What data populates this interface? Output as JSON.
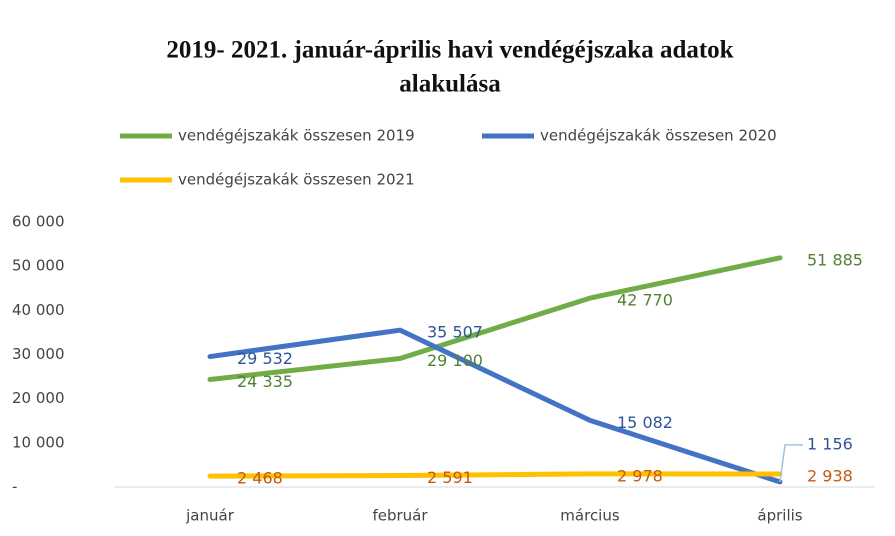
{
  "chart_data": {
    "type": "line",
    "title": [
      "2019- 2021. január-április havi vendégéjszaka adatok",
      "alakulása"
    ],
    "categories": [
      "január",
      "február",
      "március",
      "április"
    ],
    "series": [
      {
        "name": "vendégéjszakák összesen 2019",
        "color": "#70ad47",
        "label_color": "#548235",
        "values": [
          24335,
          29100,
          42770,
          51885
        ],
        "value_labels": [
          "24 335",
          "29 100",
          "42 770",
          "51 885"
        ]
      },
      {
        "name": "vendégéjszakák összesen 2020",
        "color": "#4472c4",
        "label_color": "#2f5597",
        "values": [
          29532,
          35507,
          15082,
          1156
        ],
        "value_labels": [
          "29 532",
          "35 507",
          "15 082",
          "1 156"
        ]
      },
      {
        "name": "vendégéjszakák összesen 2021",
        "color": "#ffc000",
        "label_color": "#c55a11",
        "values": [
          2468,
          2591,
          2978,
          2938
        ],
        "value_labels": [
          "2 468",
          "2 591",
          "2 978",
          "2 938"
        ]
      }
    ],
    "ylim": [
      0,
      60000
    ],
    "yticks": [
      {
        "value": 0,
        "label": "-"
      },
      {
        "value": 10000,
        "label": "10 000"
      },
      {
        "value": 20000,
        "label": "20 000"
      },
      {
        "value": 30000,
        "label": "30 000"
      },
      {
        "value": 40000,
        "label": "40 000"
      },
      {
        "value": 50000,
        "label": "50 000"
      },
      {
        "value": 60000,
        "label": "60 000"
      }
    ],
    "grid": false,
    "legend": "top"
  }
}
